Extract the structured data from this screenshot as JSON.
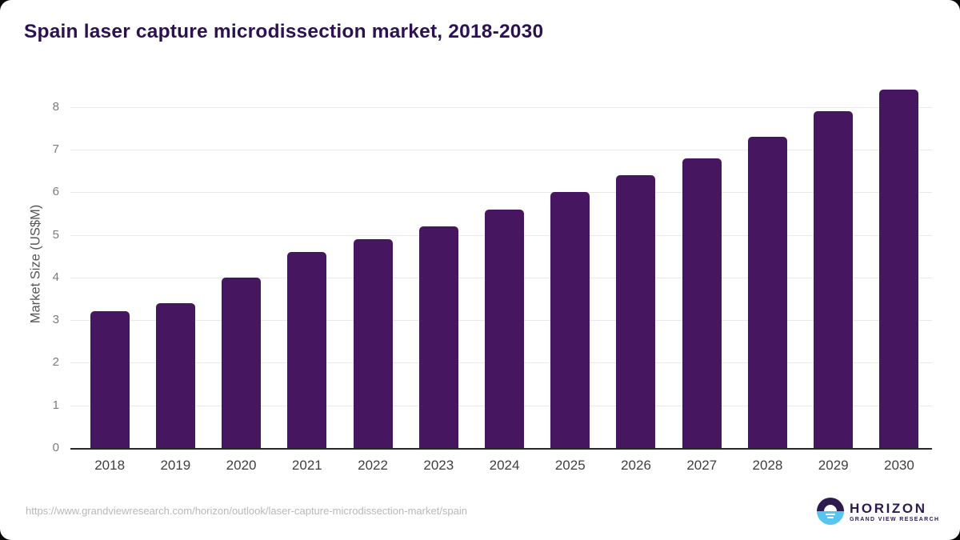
{
  "title": "Spain laser capture microdissection market, 2018-2030",
  "chart_data": {
    "type": "bar",
    "title": "Spain laser capture microdissection market, 2018-2030",
    "categories": [
      "2018",
      "2019",
      "2020",
      "2021",
      "2022",
      "2023",
      "2024",
      "2025",
      "2026",
      "2027",
      "2028",
      "2029",
      "2030"
    ],
    "values": [
      3.2,
      3.4,
      4.0,
      4.6,
      4.9,
      5.2,
      5.6,
      6.0,
      6.4,
      6.8,
      7.3,
      7.9,
      8.4
    ],
    "xlabel": "",
    "ylabel": "Market Size (US$M)",
    "ylim": [
      0,
      8.5
    ],
    "yticks": [
      0,
      1,
      2,
      3,
      4,
      5,
      6,
      7,
      8
    ],
    "grid": true,
    "legend": "none"
  },
  "colors": {
    "bar": "#461660",
    "title": "#2c1250",
    "gridline": "#e9e9e9",
    "axis_line": "#2a2a2a",
    "ytick_text": "#7a7a7a",
    "xtick_text": "#3f3f3f",
    "ylabel_text": "#565656",
    "footer_text": "#b8b8b8",
    "logo_purple": "#2d1b4e",
    "logo_blue": "#58c4f0"
  },
  "footer": {
    "source_url": "https://www.grandviewresearch.com/horizon/outlook/laser-capture-microdissection-market/spain"
  },
  "logo": {
    "name": "HORIZON",
    "subtext": "GRAND VIEW RESEARCH",
    "icon": "horizon-sunrise-icon"
  }
}
